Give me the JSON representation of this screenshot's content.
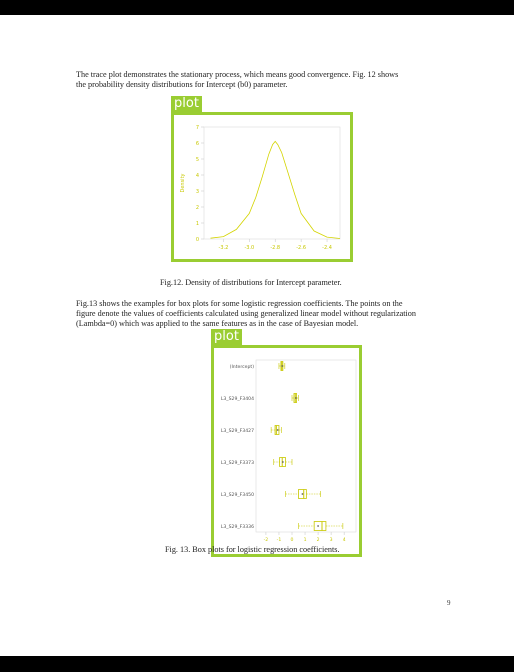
{
  "paragraph1": {
    "lines": [
      "The trace plot demonstrates the stationary process, which means good convergence. Fig. 12 shows",
      "the probability density distributions for Intercept (b0) parameter."
    ]
  },
  "figure12": {
    "detection_label": "plot",
    "caption": "Fig.12. Density of distributions for Intercept parameter.",
    "chart_data": {
      "type": "line",
      "ylabel": "Density",
      "x_ticks": [
        "-3.2",
        "-3.0",
        "-2.8",
        "-2.6",
        "-2.4"
      ],
      "y_ticks": [
        "0",
        "1",
        "2",
        "3",
        "4",
        "5",
        "6",
        "7"
      ],
      "x": [
        -3.3,
        -3.2,
        -3.1,
        -3.0,
        -2.95,
        -2.9,
        -2.85,
        -2.82,
        -2.8,
        -2.78,
        -2.75,
        -2.7,
        -2.65,
        -2.6,
        -2.5,
        -2.4,
        -2.3
      ],
      "y": [
        0.05,
        0.15,
        0.6,
        1.6,
        2.6,
        3.9,
        5.3,
        5.9,
        6.1,
        5.9,
        5.4,
        4.1,
        2.8,
        1.6,
        0.5,
        0.12,
        0.03
      ],
      "xlim": [
        -3.35,
        -2.3
      ],
      "ylim": [
        0,
        7
      ],
      "line_color": "#d4d400"
    }
  },
  "paragraph2": {
    "lines": [
      "Fig.13 shows the examples for box plots for some logistic regression coefficients. The points on the",
      "figure denote the values of coefficients calculated using generalized linear model without regularization",
      "(Lambda=0) which was applied to the same features as in the case of Bayesian model."
    ]
  },
  "figure13": {
    "detection_label": "plot",
    "caption": "Fig. 13. Box plots for logistic regression coefficients.",
    "chart_data": {
      "type": "box",
      "categories": [
        "(Intercept)",
        "L3_S29_F3404",
        "L3_S29_F3427",
        "L3_S29_F3373",
        "L3_S29_F3450",
        "L3_S29_F3336"
      ],
      "x_ticks": [
        "-2",
        "-1",
        "0",
        "1",
        "2",
        "3",
        "4"
      ],
      "xlim": [
        -2.3,
        4.6
      ],
      "boxes": [
        {
          "min": -1.0,
          "q1": -0.85,
          "median": -0.78,
          "q3": -0.7,
          "max": -0.55,
          "point": -0.75
        },
        {
          "min": 0.0,
          "q1": 0.15,
          "median": 0.25,
          "q3": 0.35,
          "max": 0.5,
          "point": 0.3
        },
        {
          "min": -1.6,
          "q1": -1.3,
          "median": -1.2,
          "q3": -1.0,
          "max": -0.8,
          "point": -1.1
        },
        {
          "min": -1.4,
          "q1": -0.95,
          "median": -0.75,
          "q3": -0.5,
          "max": 0.0,
          "point": -0.7
        },
        {
          "min": -0.5,
          "q1": 0.5,
          "median": 0.9,
          "q3": 1.1,
          "max": 2.2,
          "point": 0.8
        },
        {
          "min": 0.5,
          "q1": 1.7,
          "median": 2.3,
          "q3": 2.6,
          "max": 3.9,
          "point": 2.0
        }
      ],
      "color": "#c8c800"
    }
  },
  "page_number": "9"
}
